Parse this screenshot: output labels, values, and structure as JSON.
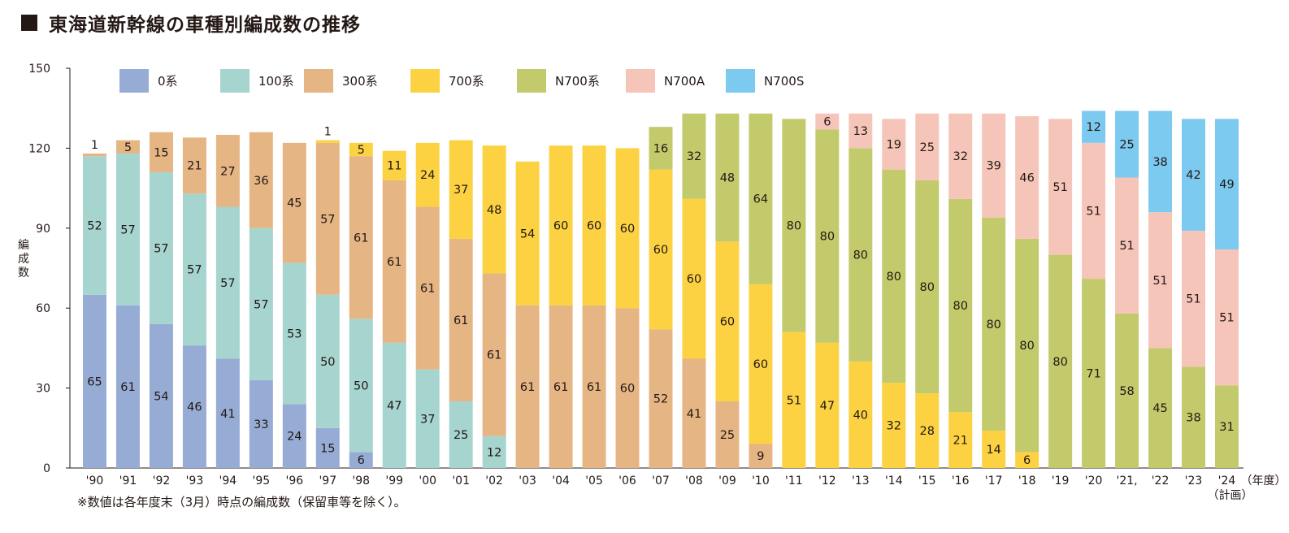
{
  "title": "東海道新幹線の車種別編成数の推移",
  "note": "※数値は各年度末（3月）時点の編成数（保留車等を除く）。",
  "colors": {
    "0系": "#97acd5",
    "100系": "#a6d4cf",
    "300系": "#e5b584",
    "700系": "#fcd243",
    "N700系": "#c2ca6b",
    "N700A": "#f6c5b9",
    "N700S": "#7ccaf0"
  },
  "chart_data": {
    "type": "bar",
    "stacked": true,
    "ylabel": "編成数",
    "x_unit_label": "（年度）",
    "x_last_sublabel": "（計画）",
    "ylim": [
      0,
      150
    ],
    "yticks": [
      0,
      30,
      60,
      90,
      120,
      150
    ],
    "categories": [
      "'90",
      "'91",
      "'92",
      "'93",
      "'94",
      "'95",
      "'96",
      "'97",
      "'98",
      "'99",
      "'00",
      "'01",
      "'02",
      "'03",
      "'04",
      "'05",
      "'06",
      "'07",
      "'08",
      "'09",
      "'10",
      "'11",
      "'12",
      "'13",
      "'14",
      "'15",
      "'16",
      "'17",
      "'18",
      "'19",
      "'20",
      "'21,",
      "'22",
      "'23",
      "'24"
    ],
    "series": [
      {
        "name": "0系",
        "values": [
          65,
          61,
          54,
          46,
          41,
          33,
          24,
          15,
          6,
          0,
          0,
          0,
          0,
          0,
          0,
          0,
          0,
          0,
          0,
          0,
          0,
          0,
          0,
          0,
          0,
          0,
          0,
          0,
          0,
          0,
          0,
          0,
          0,
          0,
          0
        ]
      },
      {
        "name": "100系",
        "values": [
          52,
          57,
          57,
          57,
          57,
          57,
          53,
          50,
          50,
          47,
          37,
          25,
          12,
          0,
          0,
          0,
          0,
          0,
          0,
          0,
          0,
          0,
          0,
          0,
          0,
          0,
          0,
          0,
          0,
          0,
          0,
          0,
          0,
          0,
          0
        ]
      },
      {
        "name": "300系",
        "values": [
          1,
          5,
          15,
          21,
          27,
          36,
          45,
          57,
          61,
          61,
          61,
          61,
          61,
          61,
          61,
          61,
          60,
          52,
          41,
          25,
          9,
          0,
          0,
          0,
          0,
          0,
          0,
          0,
          0,
          0,
          0,
          0,
          0,
          0,
          0
        ]
      },
      {
        "name": "700系",
        "values": [
          0,
          0,
          0,
          0,
          0,
          0,
          0,
          1,
          5,
          11,
          24,
          37,
          48,
          54,
          60,
          60,
          60,
          60,
          60,
          60,
          60,
          51,
          47,
          40,
          32,
          28,
          21,
          14,
          6,
          0,
          0,
          0,
          0,
          0,
          0
        ]
      },
      {
        "name": "N700系",
        "values": [
          0,
          0,
          0,
          0,
          0,
          0,
          0,
          0,
          0,
          0,
          0,
          0,
          0,
          0,
          0,
          0,
          0,
          16,
          32,
          48,
          64,
          80,
          80,
          80,
          80,
          80,
          80,
          80,
          80,
          80,
          71,
          58,
          45,
          38,
          31
        ]
      },
      {
        "name": "N700A",
        "values": [
          0,
          0,
          0,
          0,
          0,
          0,
          0,
          0,
          0,
          0,
          0,
          0,
          0,
          0,
          0,
          0,
          0,
          0,
          0,
          0,
          0,
          0,
          6,
          13,
          19,
          25,
          32,
          39,
          46,
          51,
          51,
          51,
          51,
          51,
          51
        ]
      },
      {
        "name": "N700S",
        "values": [
          0,
          0,
          0,
          0,
          0,
          0,
          0,
          0,
          0,
          0,
          0,
          0,
          0,
          0,
          0,
          0,
          0,
          0,
          0,
          0,
          0,
          0,
          0,
          0,
          0,
          0,
          0,
          0,
          0,
          0,
          12,
          25,
          38,
          42,
          49
        ]
      }
    ]
  }
}
